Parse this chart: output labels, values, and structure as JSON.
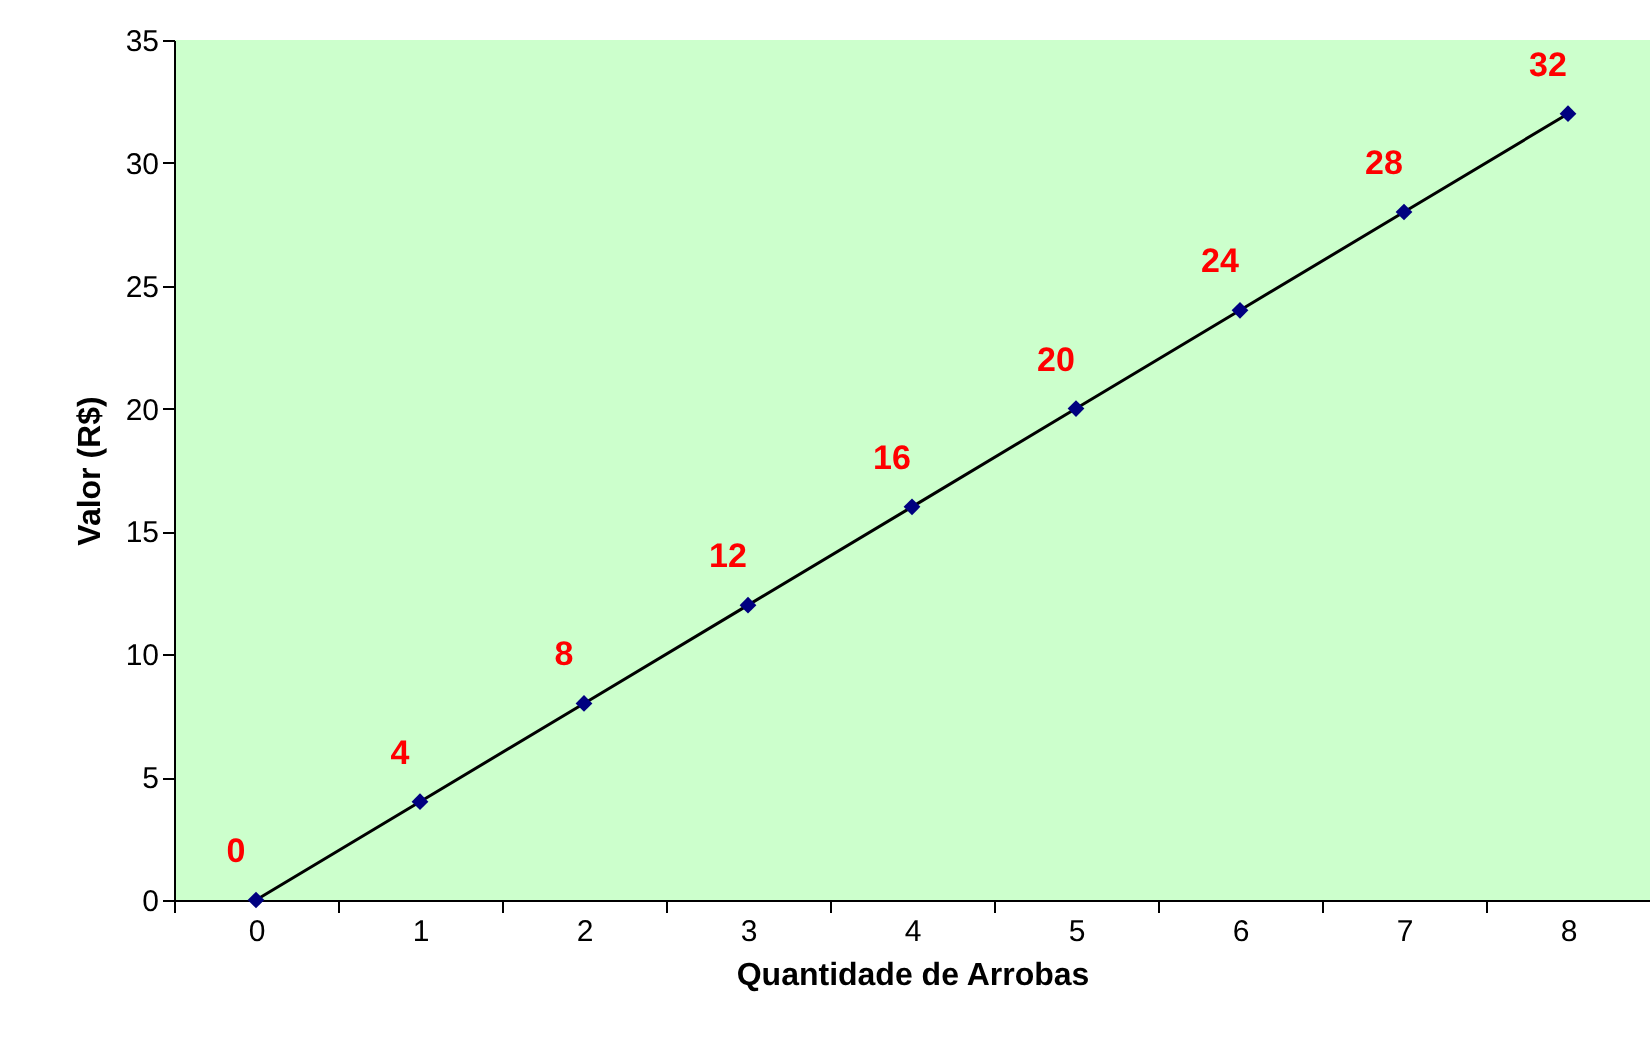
{
  "chart_data": {
    "type": "line",
    "xlabel": "Quantidade de Arrobas",
    "ylabel": "Valor (R$)",
    "categories": [
      "0",
      "1",
      "2",
      "3",
      "4",
      "5",
      "6",
      "7",
      "8"
    ],
    "series": [
      {
        "color": "#000080",
        "values": [
          0,
          4,
          8,
          12,
          16,
          20,
          24,
          28,
          32
        ]
      }
    ],
    "ylim": [
      0,
      35
    ],
    "yticks": [
      0,
      5,
      10,
      15,
      20,
      25,
      30,
      35
    ],
    "grid": false,
    "legend": false,
    "marker": "diamond",
    "line_style": "solid",
    "data_labels": true
  }
}
